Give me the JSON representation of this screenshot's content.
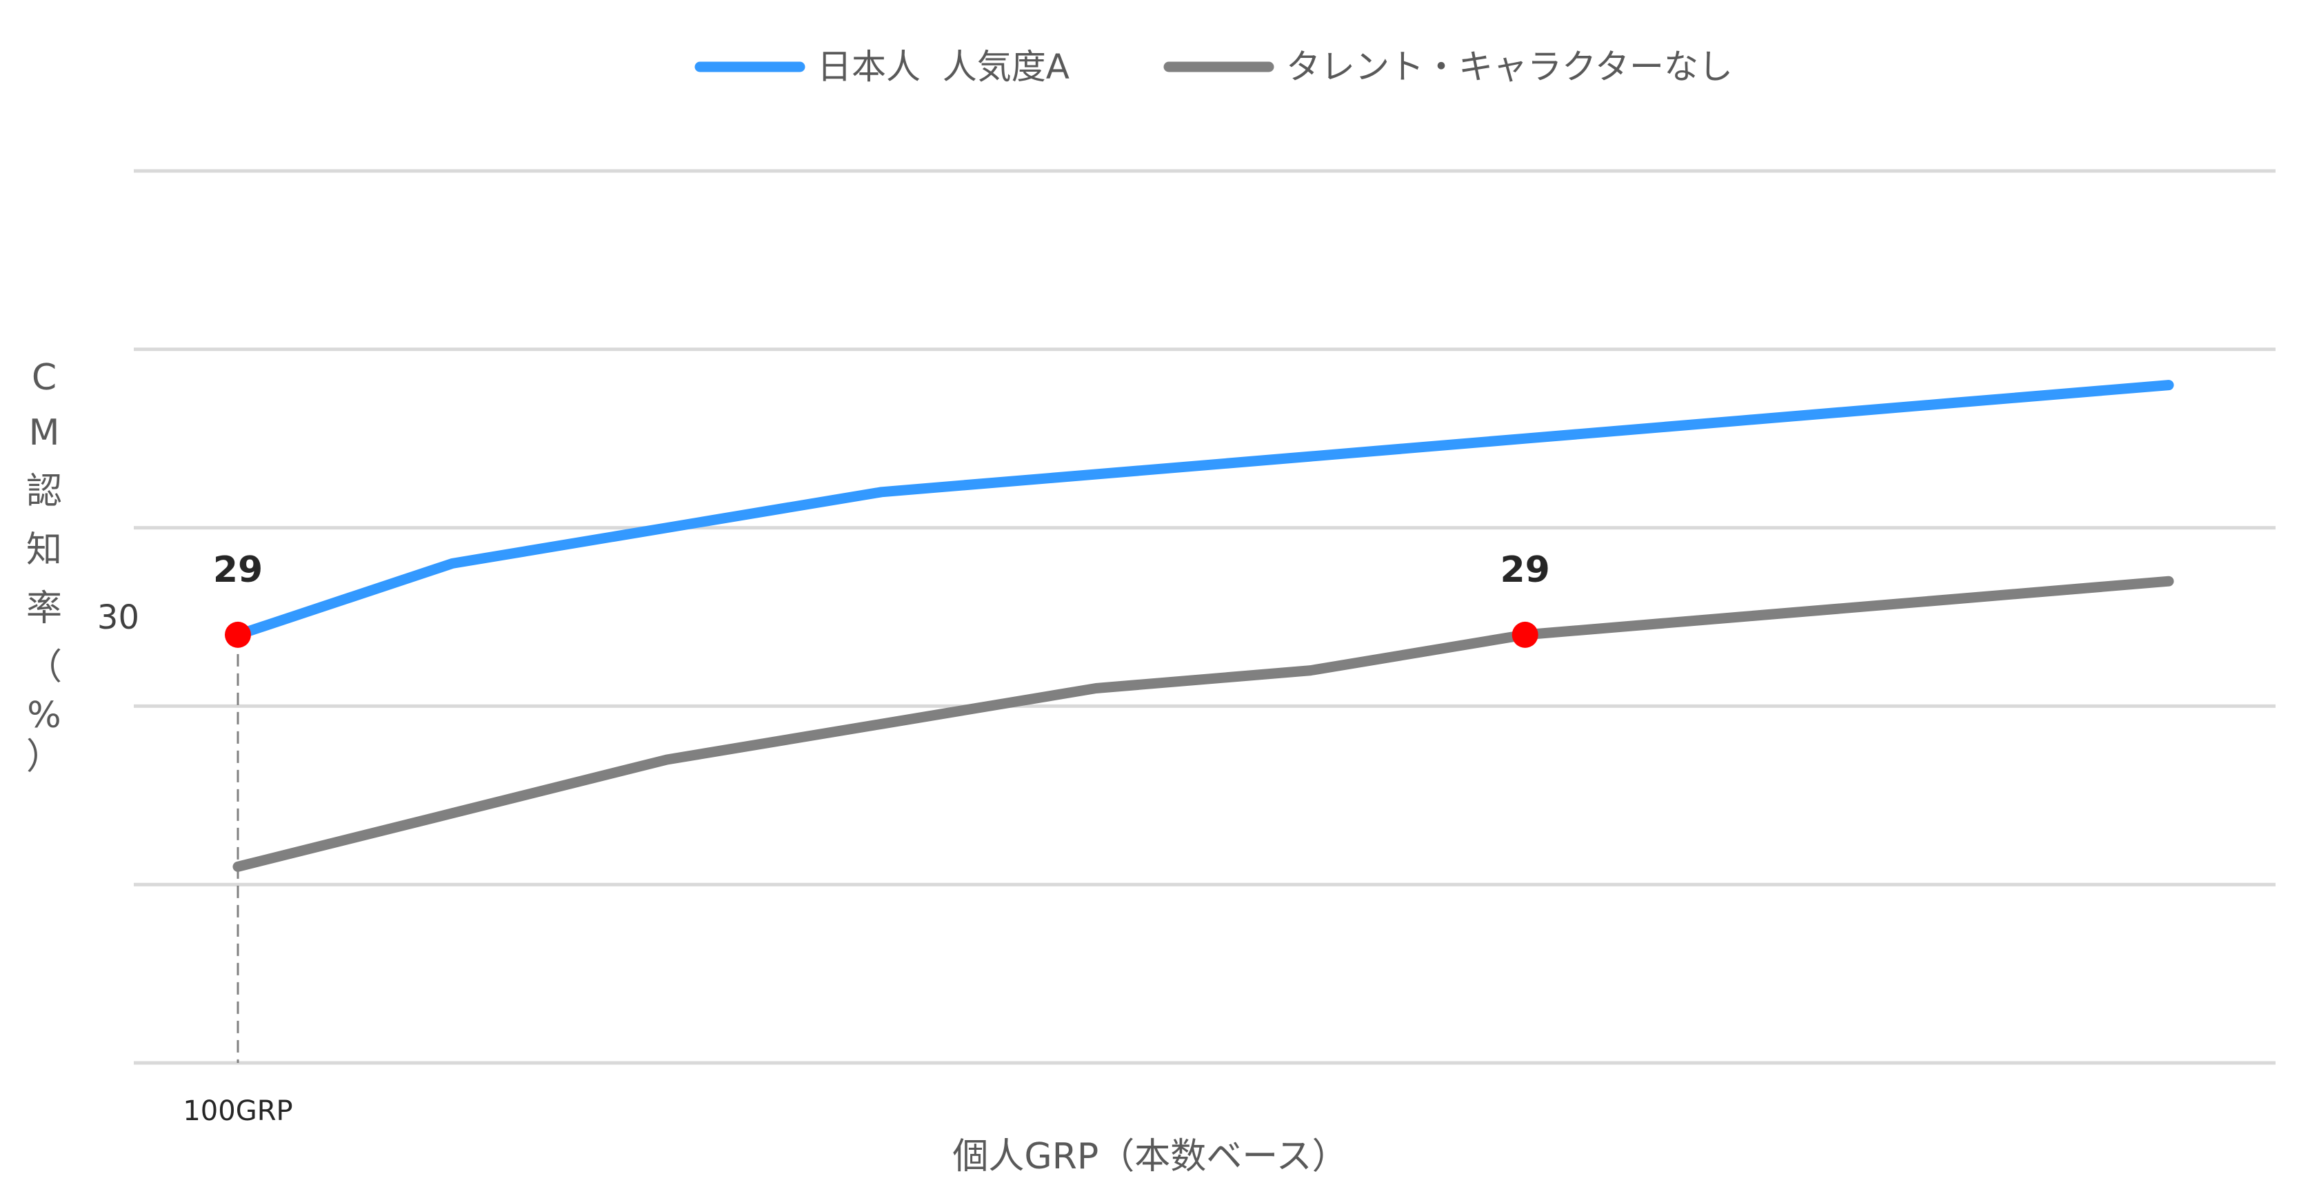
{
  "chart_data": {
    "type": "line",
    "title": "",
    "xlabel": "個人GRP（本数ベース）",
    "ylabel_chars": [
      "C",
      "M",
      "認",
      "知",
      "率",
      "（",
      "%",
      "）"
    ],
    "ylim": [
      5,
      55
    ],
    "y_ticks_shown": [
      {
        "value": 30,
        "label": "30"
      }
    ],
    "gridlines": [
      5,
      15,
      25,
      35,
      45,
      55
    ],
    "x_tick_labels": [
      {
        "index": 0,
        "label": "100GRP"
      }
    ],
    "legend_position": "top-center",
    "series": [
      {
        "name": "日本人  人気度A",
        "color": "#3399ff",
        "values": [
          29,
          33,
          35,
          37,
          38,
          39,
          40,
          41,
          42,
          43
        ]
      },
      {
        "name": "タレント・キャラクターなし",
        "color": "#808080",
        "values": [
          16,
          19,
          22,
          24,
          26,
          27,
          29,
          30,
          31,
          32
        ]
      }
    ],
    "highlight_points": [
      {
        "series": 0,
        "index": 0,
        "label": "29",
        "color": "#ff0000"
      },
      {
        "series": 1,
        "index": 6,
        "label": "29",
        "color": "#ff0000"
      }
    ]
  }
}
